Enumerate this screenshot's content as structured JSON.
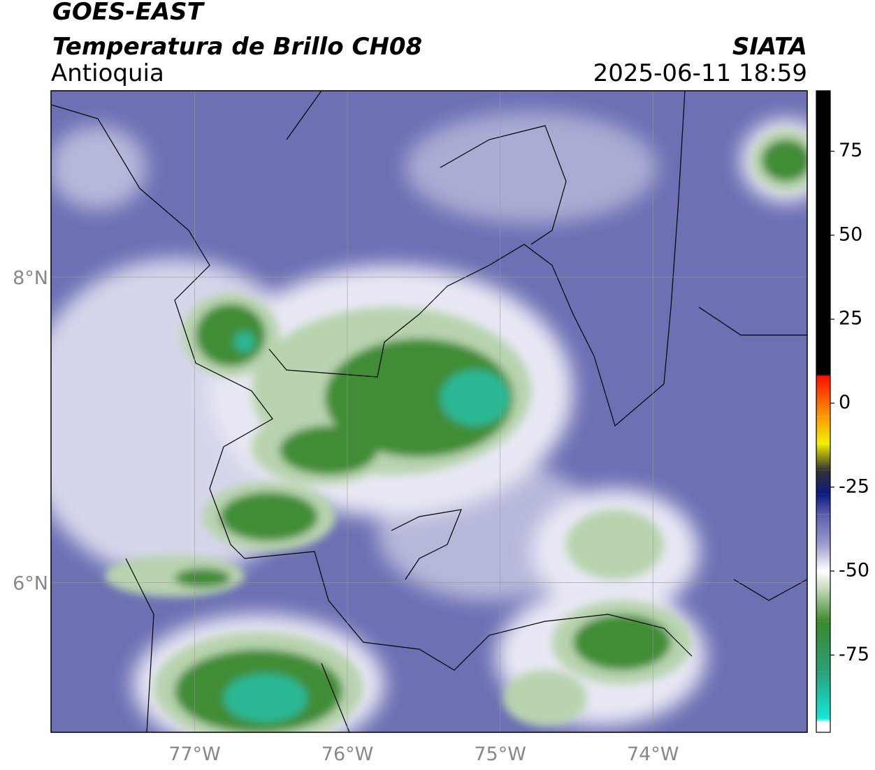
{
  "header": {
    "title": "GOES-EAST",
    "subtitle": "Temperatura de Brillo CH08",
    "region": "Antioquia",
    "source": "SIATA",
    "datetime": "2025-06-11 18:59"
  },
  "map": {
    "xlim": [
      -77.94,
      -72.99
    ],
    "ylim": [
      5.02,
      9.22
    ],
    "xticks": [
      {
        "value": -77,
        "label": "77°W"
      },
      {
        "value": -76,
        "label": "76°W"
      },
      {
        "value": -75,
        "label": "75°W"
      },
      {
        "value": -74,
        "label": "74°W"
      }
    ],
    "yticks": [
      {
        "value": 6,
        "label": "6°N"
      },
      {
        "value": 8,
        "label": "8°N"
      }
    ],
    "grid": true
  },
  "colorbar": {
    "lim": [
      -98,
      93
    ],
    "ticks": [
      -75,
      -50,
      -25,
      0,
      25,
      50,
      75
    ],
    "stops": [
      {
        "value": -98,
        "color": "#ffffff"
      },
      {
        "value": -95,
        "color": "#ffffff"
      },
      {
        "value": -94,
        "color": "#14e8d8"
      },
      {
        "value": -80,
        "color": "#2aa07a"
      },
      {
        "value": -65,
        "color": "#3a8a2a"
      },
      {
        "value": -55,
        "color": "#c9dcc0"
      },
      {
        "value": -50,
        "color": "#ffffff"
      },
      {
        "value": -42,
        "color": "#9a9ccc"
      },
      {
        "value": -33,
        "color": "#5a5caa"
      },
      {
        "value": -27,
        "color": "#0a1a80"
      },
      {
        "value": -20,
        "color": "#333333"
      },
      {
        "value": -12,
        "color": "#f0f000"
      },
      {
        "value": -4,
        "color": "#ff9a00"
      },
      {
        "value": 8,
        "color": "#ff1000"
      },
      {
        "value": 8.5,
        "color": "#000000"
      },
      {
        "value": 93,
        "color": "#000000"
      }
    ]
  }
}
